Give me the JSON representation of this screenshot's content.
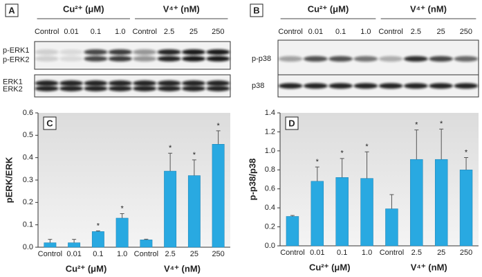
{
  "blots": [
    {
      "panel": "A",
      "groups": [
        "Cu²⁺ (μM)",
        "V⁴⁺ (nM)"
      ],
      "lanes": [
        "Control",
        "0.01",
        "0.1",
        "1.0",
        "Control",
        "2.5",
        "25",
        "250"
      ],
      "rows": [
        {
          "labels": [
            "p-ERK1",
            "p-ERK2"
          ]
        },
        {
          "labels": [
            "ERK1",
            "ERK2"
          ]
        }
      ]
    },
    {
      "panel": "B",
      "groups": [
        "Cu²⁺ (μM)",
        "V⁴⁺ (nM)"
      ],
      "lanes": [
        "Control",
        "0.01",
        "0.1",
        "1.0",
        "Control",
        "2.5",
        "25",
        "250"
      ],
      "rows": [
        {
          "labels": [
            "p-p38"
          ]
        },
        {
          "labels": [
            "p38"
          ]
        }
      ]
    }
  ],
  "chart_data": [
    {
      "type": "bar",
      "panel": "C",
      "y_label": "pERK/ERK",
      "categories": [
        "Control",
        "0.01",
        "0.1",
        "1.0",
        "Control",
        "2.5",
        "25",
        "250"
      ],
      "groups": [
        "Cu²⁺ (μM)",
        "V⁴⁺ (nM)"
      ],
      "values": [
        0.02,
        0.02,
        0.07,
        0.13,
        0.033,
        0.34,
        0.32,
        0.46
      ],
      "errors": [
        0.015,
        0.015,
        0.003,
        0.02,
        0.003,
        0.08,
        0.07,
        0.06
      ],
      "significance": [
        null,
        null,
        "*",
        "*",
        null,
        "*",
        "*",
        "*"
      ],
      "color": "#29a9e1",
      "grid": false,
      "ylim": [
        0,
        0.6
      ],
      "yticks": [
        {
          "value": 0,
          "label": "0.0"
        },
        0.1,
        0.2,
        0.3,
        0.4,
        0.5,
        0.6
      ]
    },
    {
      "type": "bar",
      "panel": "D",
      "y_label": "p-p38/p38",
      "categories": [
        "Control",
        "0.01",
        "0.1",
        "1.0",
        "Control",
        "2.5",
        "25",
        "250"
      ],
      "groups": [
        "Cu²⁺ (μM)",
        "V⁴⁺ (nM)"
      ],
      "values": [
        0.31,
        0.68,
        0.72,
        0.71,
        0.39,
        0.91,
        0.91,
        0.8
      ],
      "errors": [
        0.01,
        0.15,
        0.2,
        0.28,
        0.15,
        0.31,
        0.32,
        0.13
      ],
      "significance": [
        null,
        "*",
        "*",
        "*",
        null,
        "*",
        "*",
        "*"
      ],
      "color": "#29a9e1",
      "grid": false,
      "ylim": [
        0,
        1.4
      ],
      "yticks": [
        {
          "value": 0,
          "label": "0.0"
        },
        0.2,
        0.4,
        0.6,
        0.8,
        {
          "value": 1,
          "label": "1.0"
        },
        1.2,
        1.4
      ]
    }
  ]
}
